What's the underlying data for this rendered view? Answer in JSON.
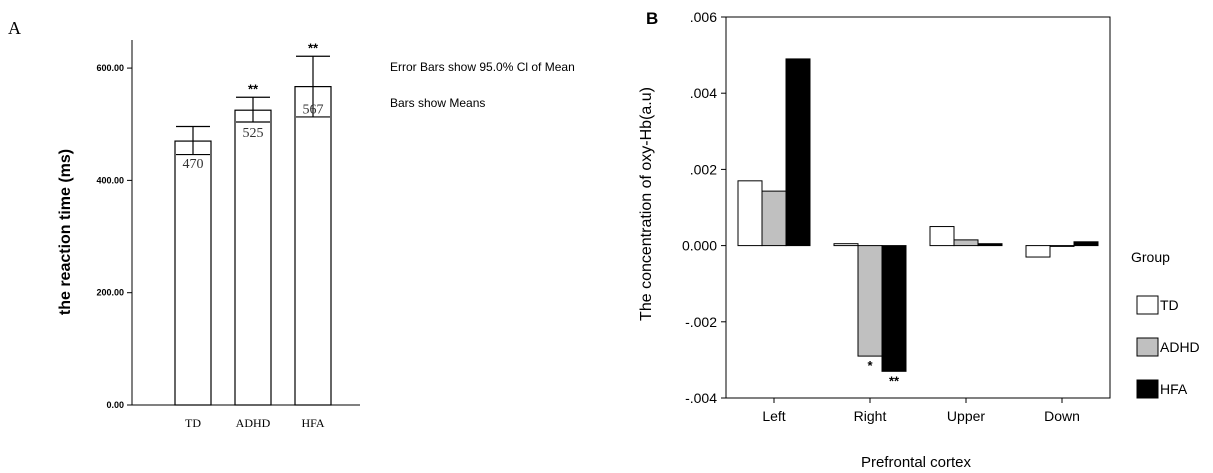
{
  "chart_data": [
    {
      "panel_label": "A",
      "type": "bar",
      "categories": [
        "TD",
        "ADHD",
        "HFA"
      ],
      "values": [
        470,
        525,
        567
      ],
      "value_labels": [
        "470",
        "525",
        "567"
      ],
      "error_bars": [
        {
          "low": 446,
          "high": 496
        },
        {
          "low": 504,
          "high": 548
        },
        {
          "low": 513,
          "high": 621
        }
      ],
      "significance": [
        "",
        "**",
        "**"
      ],
      "ylabel": "the reaction time (ms)",
      "ylim": [
        0,
        650
      ],
      "yticks": [
        0,
        200,
        400,
        600
      ],
      "ytick_labels": [
        "0.00",
        "200.00",
        "400.00",
        "600.00"
      ],
      "notes": [
        "Error Bars show 95.0% Cl of Mean",
        "Bars show Means"
      ],
      "colors": {
        "bar_fill": "#ffffff",
        "stroke": "#000000"
      }
    },
    {
      "panel_label": "B",
      "type": "bar",
      "categories": [
        "Left",
        "Right",
        "Upper",
        "Down"
      ],
      "series": [
        {
          "name": "TD",
          "values": [
            0.0017,
            5e-05,
            0.0005,
            -0.0003
          ],
          "color": "#ffffff"
        },
        {
          "name": "ADHD",
          "values": [
            0.00143,
            -0.0029,
            0.00015,
            0.0
          ],
          "color": "#c0c0c0"
        },
        {
          "name": "HFA",
          "values": [
            0.0049,
            -0.0033,
            5e-05,
            0.0001
          ],
          "color": "#000000"
        }
      ],
      "significance": [
        {
          "category": "Right",
          "series": "ADHD",
          "mark": "*"
        },
        {
          "category": "Right",
          "series": "HFA",
          "mark": "**"
        }
      ],
      "xlabel": "Prefrontal cortex",
      "ylabel": "The concentration of oxy-Hb(a.u)",
      "ylim": [
        -0.004,
        0.006
      ],
      "yticks": [
        -0.004,
        -0.002,
        0,
        0.002,
        0.004,
        0.006
      ],
      "ytick_labels": [
        "-.004",
        "-.002",
        "0.000",
        ".002",
        ".004",
        ".006"
      ],
      "legend_title": "Group",
      "legend_position": "right"
    }
  ]
}
